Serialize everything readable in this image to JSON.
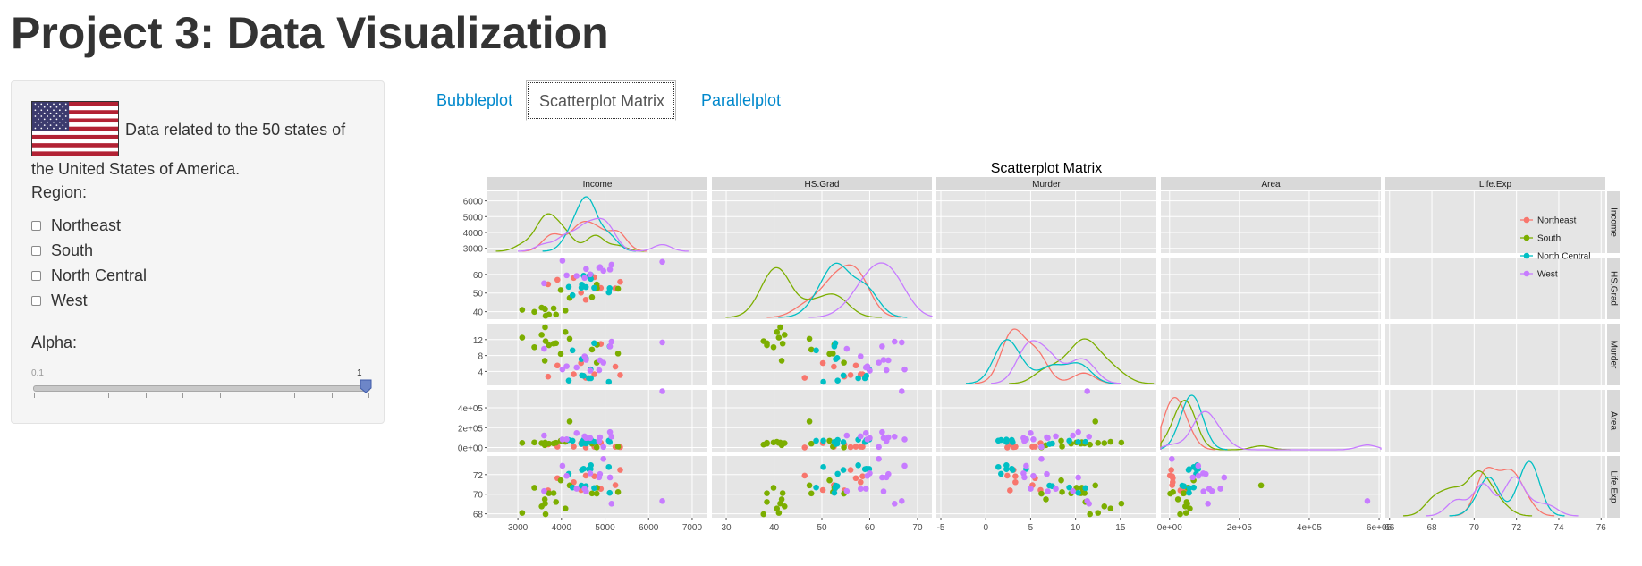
{
  "page": {
    "title": "Project 3: Data Visualization"
  },
  "sidebar": {
    "description_line1": "Data related to the 50 states of",
    "description_line2": "the United States of America.",
    "region_label": "Region:",
    "regions": [
      "Northeast",
      "South",
      "North Central",
      "West"
    ],
    "alpha_label": "Alpha:",
    "alpha_slider": {
      "min_label": "0.1",
      "max_label": "1",
      "value": 1
    }
  },
  "tabs": [
    {
      "label": "Bubbleplot",
      "active": false
    },
    {
      "label": "Scatterplot Matrix",
      "active": true
    },
    {
      "label": "Parallelplot",
      "active": false
    }
  ],
  "colors": {
    "Northeast": "#F8766D",
    "South": "#7CAE00",
    "North Central": "#00BFC4",
    "West": "#C77CFF"
  },
  "chart_data": {
    "type": "scatter",
    "title": "Scatterplot Matrix",
    "variables": [
      "Income",
      "HS.Grad",
      "Murder",
      "Area",
      "Life.Exp"
    ],
    "x_tick_labels": {
      "Income": [
        "3000",
        "4000",
        "5000",
        "6000",
        "7000"
      ],
      "HS.Grad": [
        "30",
        "40",
        "50",
        "60",
        "70"
      ],
      "Murder": [
        "-5",
        "0",
        "5",
        "10",
        "15"
      ],
      "Area": [
        "0e+00",
        "2e+05",
        "4e+05",
        "6e+05"
      ],
      "Life.Exp": [
        "66",
        "68",
        "70",
        "72",
        "74",
        "76"
      ]
    },
    "y_tick_labels": {
      "Income": [
        "3000",
        "4000",
        "5000",
        "6000"
      ],
      "HS.Grad": [
        "40",
        "50",
        "60"
      ],
      "Murder": [
        "4",
        "8",
        "12"
      ],
      "Area": [
        "0e+00",
        "2e+05",
        "4e+05"
      ],
      "Life.Exp": [
        "68",
        "70",
        "72"
      ]
    },
    "legend": {
      "position": "top-right",
      "entries": [
        "Northeast",
        "South",
        "North Central",
        "West"
      ]
    },
    "series": [
      {
        "name": "Northeast",
        "points": [
          {
            "Income": 5348,
            "HS.Grad": 56.0,
            "Murder": 3.1,
            "Area": 4862,
            "Life.Exp": 72.48
          },
          {
            "Income": 3694,
            "HS.Grad": 54.7,
            "Murder": 2.7,
            "Area": 30920,
            "Life.Exp": 70.39
          },
          {
            "Income": 4755,
            "HS.Grad": 58.5,
            "Murder": 3.3,
            "Area": 7826,
            "Life.Exp": 71.83
          },
          {
            "Income": 4281,
            "HS.Grad": 58.1,
            "Murder": 3.3,
            "Area": 9027,
            "Life.Exp": 71.23
          },
          {
            "Income": 5237,
            "HS.Grad": 52.5,
            "Murder": 5.2,
            "Area": 7521,
            "Life.Exp": 70.93
          },
          {
            "Income": 4903,
            "HS.Grad": 52.7,
            "Murder": 10.9,
            "Area": 47831,
            "Life.Exp": 70.55
          },
          {
            "Income": 4449,
            "HS.Grad": 50.2,
            "Murder": 6.1,
            "Area": 44966,
            "Life.Exp": 70.43
          },
          {
            "Income": 4558,
            "HS.Grad": 46.4,
            "Murder": 2.4,
            "Area": 1049,
            "Life.Exp": 71.9
          },
          {
            "Income": 3907,
            "HS.Grad": 57.1,
            "Murder": 5.5,
            "Area": 9267,
            "Life.Exp": 71.64
          }
        ]
      },
      {
        "name": "South",
        "points": [
          {
            "Income": 3624,
            "HS.Grad": 41.3,
            "Murder": 15.1,
            "Area": 50708,
            "Life.Exp": 69.05
          },
          {
            "Income": 3378,
            "HS.Grad": 39.9,
            "Murder": 10.1,
            "Area": 51945,
            "Life.Exp": 70.66
          },
          {
            "Income": 4809,
            "HS.Grad": 54.6,
            "Murder": 6.2,
            "Area": 1982,
            "Life.Exp": 70.06
          },
          {
            "Income": 4815,
            "HS.Grad": 52.6,
            "Murder": 10.7,
            "Area": 54090,
            "Life.Exp": 70.66
          },
          {
            "Income": 4091,
            "HS.Grad": 40.6,
            "Murder": 13.9,
            "Area": 58073,
            "Life.Exp": 68.54
          },
          {
            "Income": 3712,
            "HS.Grad": 38.5,
            "Murder": 10.6,
            "Area": 39650,
            "Life.Exp": 70.1
          },
          {
            "Income": 3545,
            "HS.Grad": 42.2,
            "Murder": 13.2,
            "Area": 44930,
            "Life.Exp": 68.76
          },
          {
            "Income": 5299,
            "HS.Grad": 52.3,
            "Murder": 8.5,
            "Area": 9891,
            "Life.Exp": 70.22
          },
          {
            "Income": 3098,
            "HS.Grad": 41.0,
            "Murder": 12.5,
            "Area": 47296,
            "Life.Exp": 68.09
          },
          {
            "Income": 3875,
            "HS.Grad": 38.5,
            "Murder": 11.1,
            "Area": 48798,
            "Life.Exp": 69.21
          },
          {
            "Income": 3983,
            "HS.Grad": 51.6,
            "Murder": 8.4,
            "Area": 68782,
            "Life.Exp": 71.42
          },
          {
            "Income": 3635,
            "HS.Grad": 37.8,
            "Murder": 11.6,
            "Area": 30225,
            "Life.Exp": 67.96
          },
          {
            "Income": 3821,
            "HS.Grad": 41.8,
            "Murder": 11.0,
            "Area": 41328,
            "Life.Exp": 70.11
          },
          {
            "Income": 4188,
            "HS.Grad": 47.4,
            "Murder": 12.2,
            "Area": 262134,
            "Life.Exp": 70.9
          },
          {
            "Income": 4701,
            "HS.Grad": 47.8,
            "Murder": 9.5,
            "Area": 39780,
            "Life.Exp": 70.08
          },
          {
            "Income": 3617,
            "HS.Grad": 41.6,
            "Murder": 6.7,
            "Area": 24070,
            "Life.Exp": 69.48
          }
        ]
      },
      {
        "name": "North Central",
        "points": [
          {
            "Income": 5107,
            "HS.Grad": 52.6,
            "Murder": 10.3,
            "Area": 55748,
            "Life.Exp": 70.14
          },
          {
            "Income": 4458,
            "HS.Grad": 52.9,
            "Murder": 7.1,
            "Area": 36097,
            "Life.Exp": 70.88
          },
          {
            "Income": 4628,
            "HS.Grad": 59.0,
            "Murder": 2.3,
            "Area": 55941,
            "Life.Exp": 72.56
          },
          {
            "Income": 4669,
            "HS.Grad": 59.9,
            "Murder": 4.5,
            "Area": 81787,
            "Life.Exp": 72.58
          },
          {
            "Income": 4751,
            "HS.Grad": 52.8,
            "Murder": 11.1,
            "Area": 56817,
            "Life.Exp": 70.63
          },
          {
            "Income": 4675,
            "HS.Grad": 57.6,
            "Murder": 2.3,
            "Area": 79289,
            "Life.Exp": 72.96
          },
          {
            "Income": 4254,
            "HS.Grad": 48.8,
            "Murder": 9.3,
            "Area": 68995,
            "Life.Exp": 70.69
          },
          {
            "Income": 4508,
            "HS.Grad": 59.3,
            "Murder": 2.9,
            "Area": 76483,
            "Life.Exp": 72.6
          },
          {
            "Income": 5087,
            "HS.Grad": 50.3,
            "Murder": 1.4,
            "Area": 69273,
            "Life.Exp": 72.78
          },
          {
            "Income": 4561,
            "HS.Grad": 53.2,
            "Murder": 7.4,
            "Area": 40975,
            "Life.Exp": 70.82
          },
          {
            "Income": 4167,
            "HS.Grad": 53.3,
            "Murder": 1.7,
            "Area": 75955,
            "Life.Exp": 72.08
          },
          {
            "Income": 4468,
            "HS.Grad": 54.5,
            "Murder": 3.0,
            "Area": 54464,
            "Life.Exp": 72.48
          }
        ]
      },
      {
        "name": "West",
        "points": [
          {
            "Income": 6315,
            "HS.Grad": 66.7,
            "Murder": 11.3,
            "Area": 566432,
            "Life.Exp": 69.31
          },
          {
            "Income": 4530,
            "HS.Grad": 58.1,
            "Murder": 7.8,
            "Area": 113417,
            "Life.Exp": 70.55
          },
          {
            "Income": 5114,
            "HS.Grad": 62.6,
            "Murder": 10.3,
            "Area": 156361,
            "Life.Exp": 71.71
          },
          {
            "Income": 4884,
            "HS.Grad": 63.9,
            "Murder": 6.8,
            "Area": 103766,
            "Life.Exp": 72.06
          },
          {
            "Income": 4963,
            "HS.Grad": 61.9,
            "Murder": 6.2,
            "Area": 6425,
            "Life.Exp": 73.6
          },
          {
            "Income": 4119,
            "HS.Grad": 59.5,
            "Murder": 5.3,
            "Area": 82677,
            "Life.Exp": 71.87
          },
          {
            "Income": 4347,
            "HS.Grad": 59.2,
            "Murder": 5.0,
            "Area": 145587,
            "Life.Exp": 70.56
          },
          {
            "Income": 5149,
            "HS.Grad": 65.2,
            "Murder": 11.5,
            "Area": 109889,
            "Life.Exp": 69.03
          },
          {
            "Income": 3601,
            "HS.Grad": 55.2,
            "Murder": 9.7,
            "Area": 121412,
            "Life.Exp": 70.32
          },
          {
            "Income": 4660,
            "HS.Grad": 60.0,
            "Murder": 4.2,
            "Area": 96184,
            "Life.Exp": 72.13
          },
          {
            "Income": 4022,
            "HS.Grad": 67.3,
            "Murder": 4.5,
            "Area": 82096,
            "Life.Exp": 72.9
          },
          {
            "Income": 4864,
            "HS.Grad": 63.5,
            "Murder": 4.3,
            "Area": 66570,
            "Life.Exp": 71.72
          },
          {
            "Income": 4566,
            "HS.Grad": 62.9,
            "Murder": 6.9,
            "Area": 97203,
            "Life.Exp": 70.29
          }
        ]
      }
    ]
  }
}
